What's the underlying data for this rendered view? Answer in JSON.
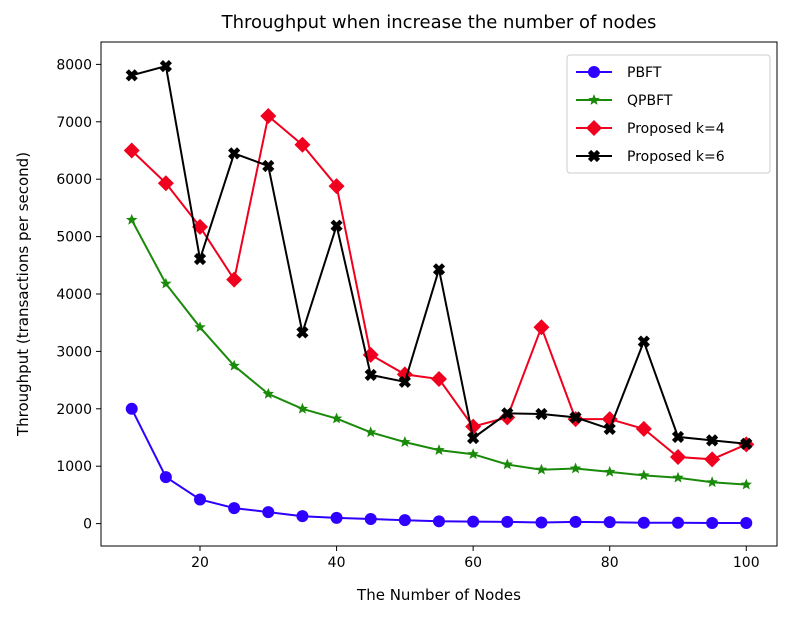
{
  "chart_data": {
    "type": "line",
    "title": "Throughput when increase the number of nodes",
    "xlabel": "The Number of Nodes",
    "ylabel": "Throughput (transactions per second)",
    "xlim": [
      5.5,
      104.5
    ],
    "ylim": [
      -390,
      8390
    ],
    "xticks": [
      20,
      40,
      60,
      80,
      100
    ],
    "yticks": [
      0,
      1000,
      2000,
      3000,
      4000,
      5000,
      6000,
      7000,
      8000
    ],
    "grid": false,
    "legend_position": "top-right",
    "x": [
      10,
      15,
      20,
      25,
      30,
      35,
      40,
      45,
      50,
      55,
      60,
      65,
      70,
      75,
      80,
      85,
      90,
      95,
      100
    ],
    "series": [
      {
        "name": "PBFT",
        "color": "#2f00ff",
        "marker": "circle",
        "values": [
          2000,
          810,
          420,
          270,
          200,
          130,
          100,
          80,
          60,
          40,
          35,
          30,
          20,
          30,
          25,
          15,
          15,
          10,
          10
        ]
      },
      {
        "name": "QPBFT",
        "color": "#1a8a0a",
        "marker": "star",
        "values": [
          5290,
          4180,
          3420,
          2750,
          2260,
          2000,
          1830,
          1590,
          1420,
          1280,
          1210,
          1030,
          940,
          960,
          900,
          840,
          800,
          720,
          680
        ]
      },
      {
        "name": "Proposed k=4",
        "color": "#f0001e",
        "marker": "diamond",
        "values": [
          6500,
          5930,
          5170,
          4250,
          7100,
          6600,
          5880,
          2940,
          2600,
          2520,
          1690,
          1850,
          3420,
          1820,
          1820,
          1650,
          1160,
          1120,
          1380
        ]
      },
      {
        "name": "Proposed k=6",
        "color": "#000000",
        "marker": "x-filled",
        "values": [
          7810,
          7970,
          4610,
          6450,
          6230,
          3330,
          5190,
          2590,
          2470,
          4430,
          1490,
          1920,
          1910,
          1850,
          1650,
          3170,
          1510,
          1450,
          1390
        ]
      }
    ]
  }
}
